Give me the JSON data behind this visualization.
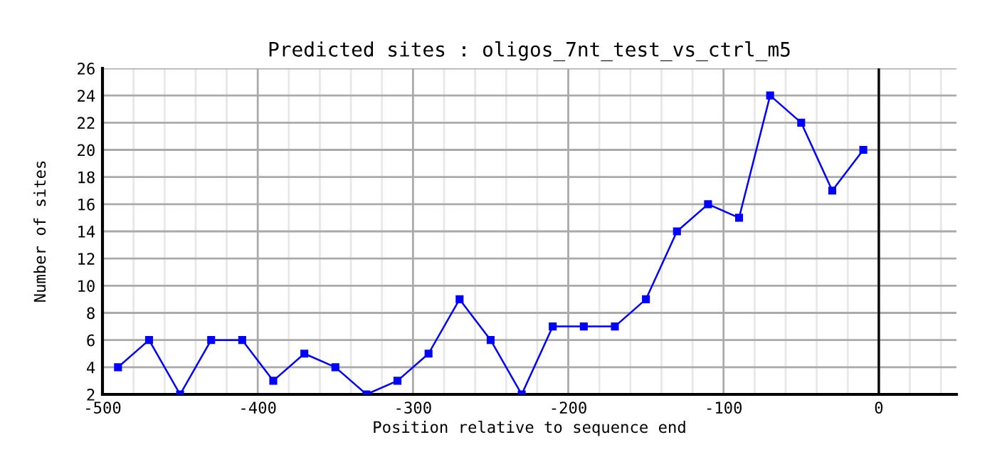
{
  "chart_data": {
    "type": "line",
    "title": "Predicted sites : oligos_7nt_test_vs_ctrl_m5",
    "xlabel": "Position relative to sequence end",
    "ylabel": "Number of sites",
    "x": [
      -490,
      -470,
      -450,
      -430,
      -410,
      -390,
      -370,
      -350,
      -330,
      -310,
      -290,
      -270,
      -250,
      -230,
      -210,
      -190,
      -170,
      -150,
      -130,
      -110,
      -90,
      -70,
      -50,
      -30,
      -10
    ],
    "series": [
      {
        "color": "#0000ff",
        "values": [
          4,
          6,
          2,
          6,
          6,
          3,
          5,
          4,
          2,
          3,
          5,
          9,
          6,
          2,
          7,
          7,
          7,
          9,
          14,
          16,
          15,
          24,
          22,
          17,
          20
        ]
      }
    ],
    "xlim": [
      -500,
      50
    ],
    "ylim": [
      2,
      26
    ],
    "xticks": [
      -500,
      {
        "value": -480,
        "label": null
      },
      {
        "value": -460,
        "label": null
      },
      {
        "value": -440,
        "label": null
      },
      {
        "value": -420,
        "label": null
      },
      -400,
      {
        "value": -380,
        "label": null
      },
      {
        "value": -360,
        "label": null
      },
      {
        "value": -340,
        "label": null
      },
      {
        "value": -320,
        "label": null
      },
      -300,
      {
        "value": -280,
        "label": null
      },
      {
        "value": -260,
        "label": null
      },
      {
        "value": -240,
        "label": null
      },
      {
        "value": -220,
        "label": null
      },
      -200,
      {
        "value": -180,
        "label": null
      },
      {
        "value": -160,
        "label": null
      },
      {
        "value": -140,
        "label": null
      },
      {
        "value": -120,
        "label": null
      },
      -100,
      {
        "value": -80,
        "label": null
      },
      {
        "value": -60,
        "label": null
      },
      {
        "value": -40,
        "label": null
      },
      {
        "value": -20,
        "label": null
      },
      0,
      {
        "value": 20,
        "label": null
      },
      {
        "value": 40,
        "label": null
      }
    ],
    "yticks": [
      2,
      4,
      6,
      8,
      10,
      12,
      14,
      16,
      18,
      20,
      22,
      24,
      26
    ],
    "ref_lines": [
      {
        "axis": "x",
        "value": 0,
        "color": "#000000"
      }
    ],
    "grid": true,
    "marker": "square",
    "line_style": "solid"
  }
}
